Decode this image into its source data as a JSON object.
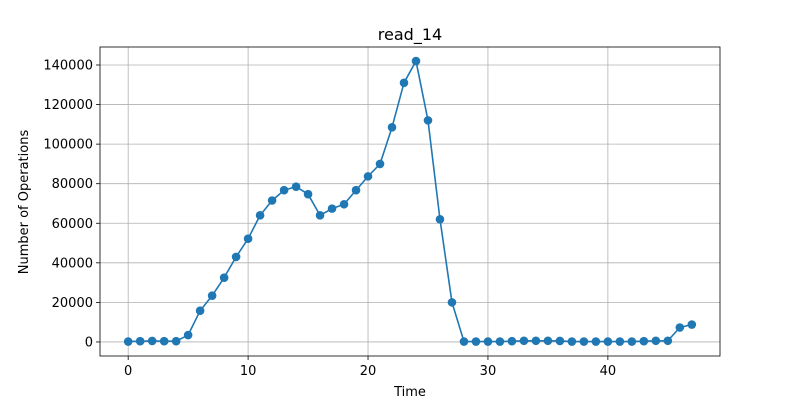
{
  "chart_data": {
    "type": "line",
    "title": "read_14",
    "xlabel": "Time",
    "ylabel": "Number of Operations",
    "xlim": [
      -2.35,
      49.35
    ],
    "ylim": [
      -7100,
      149100
    ],
    "x_ticks": [
      0,
      10,
      20,
      30,
      40
    ],
    "y_ticks": [
      0,
      20000,
      40000,
      60000,
      80000,
      100000,
      120000,
      140000
    ],
    "grid": true,
    "colors": {
      "line": "#1f77b4",
      "grid": "#b0b0b0",
      "axis": "#000000"
    },
    "series": [
      {
        "x": [
          0,
          1,
          2,
          3,
          4,
          5,
          6,
          7,
          8,
          9,
          10,
          11,
          12,
          13,
          14,
          15,
          16,
          17,
          18,
          19,
          20,
          21,
          22,
          23,
          24,
          25,
          26,
          27,
          28,
          29,
          30,
          31,
          32,
          33,
          34,
          35,
          36,
          37,
          38,
          39,
          40,
          41,
          42,
          43,
          44,
          45,
          46,
          47
        ],
        "values": [
          200,
          400,
          500,
          400,
          400,
          3500,
          15800,
          23400,
          32500,
          43000,
          52200,
          64000,
          71500,
          76700,
          78500,
          74700,
          64000,
          67400,
          69600,
          76700,
          83700,
          90000,
          108500,
          131000,
          142000,
          112000,
          62000,
          20000,
          200,
          200,
          200,
          200,
          400,
          600,
          600,
          600,
          500,
          200,
          200,
          200,
          200,
          200,
          200,
          400,
          600,
          600,
          7300,
          8800
        ]
      }
    ]
  }
}
